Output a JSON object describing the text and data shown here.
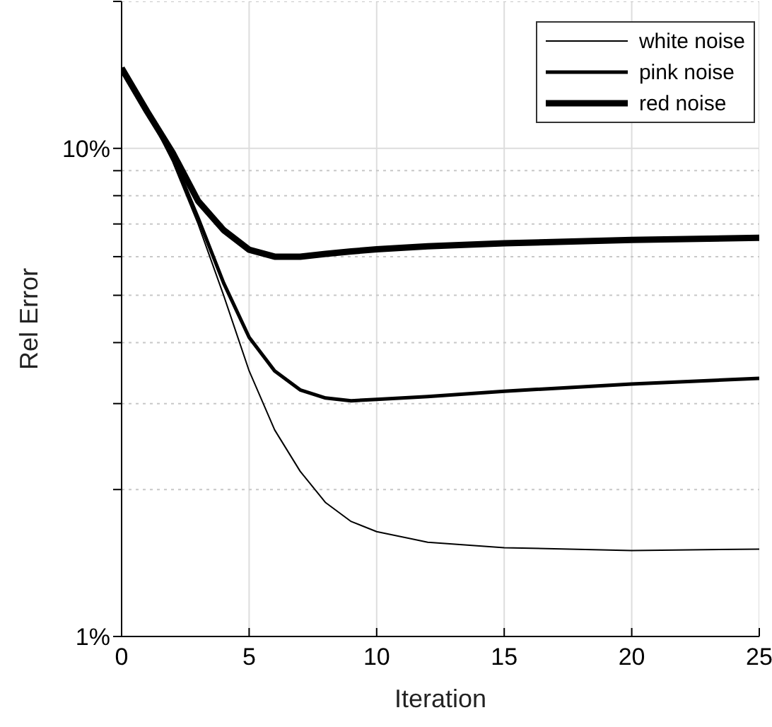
{
  "chart_data": {
    "type": "line",
    "xlabel": "Iteration",
    "ylabel": "Rel Error",
    "x": [
      0,
      1,
      2,
      3,
      4,
      5,
      6,
      7,
      8,
      9,
      10,
      12,
      15,
      20,
      25
    ],
    "series": [
      {
        "name": "white noise",
        "color": "#000000",
        "values": [
          14.6,
          11.9,
          9.4,
          7.0,
          5.0,
          3.5,
          2.65,
          2.18,
          1.88,
          1.72,
          1.64,
          1.56,
          1.52,
          1.5,
          1.51
        ]
      },
      {
        "name": "pink noise",
        "color": "#000000",
        "values": [
          14.6,
          11.9,
          9.6,
          7.2,
          5.3,
          4.1,
          3.5,
          3.2,
          3.08,
          3.04,
          3.06,
          3.1,
          3.18,
          3.29,
          3.38
        ]
      },
      {
        "name": "red noise",
        "color": "#000000",
        "values": [
          14.6,
          11.9,
          9.8,
          7.8,
          6.8,
          6.2,
          6.0,
          6.0,
          6.08,
          6.15,
          6.21,
          6.3,
          6.39,
          6.49,
          6.56
        ]
      }
    ],
    "log": "y",
    "xlim": [
      0,
      25
    ],
    "xticks": [
      0,
      5,
      10,
      15,
      20,
      25
    ],
    "ylim": [
      1,
      20
    ],
    "yticks": [
      {
        "value": 1,
        "label": "1%"
      },
      {
        "value": 2,
        "label": null
      },
      {
        "value": 3,
        "label": null
      },
      {
        "value": 4,
        "label": null
      },
      {
        "value": 5,
        "label": null
      },
      {
        "value": 6,
        "label": null
      },
      {
        "value": 7,
        "label": null
      },
      {
        "value": 8,
        "label": null
      },
      {
        "value": 9,
        "label": null
      },
      {
        "value": 10,
        "label": "10%"
      },
      {
        "value": 20,
        "label": null
      }
    ],
    "grid": true,
    "legend": "top right",
    "marker": "none",
    "line_style": "solid"
  }
}
